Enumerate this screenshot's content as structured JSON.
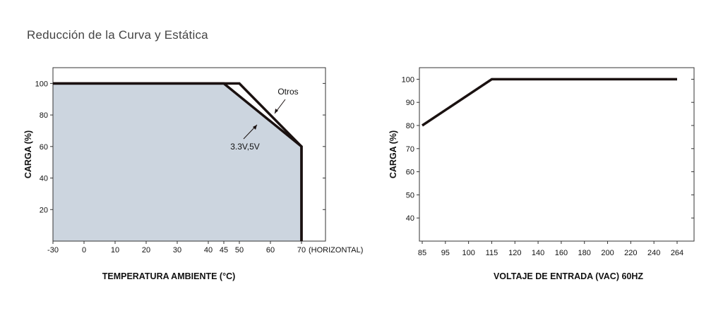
{
  "page": {
    "title": "Reducción de la Curva y Estática"
  },
  "chart_data": [
    {
      "type": "line",
      "xlabel": "TEMPERATURA AMBIENTE (°C)",
      "ylabel": "CARGA (%)",
      "x_ticks": [
        -30,
        0,
        10,
        20,
        30,
        40,
        45,
        50,
        60,
        70
      ],
      "x_tick_labels": [
        "-30",
        "0",
        "10",
        "20",
        "30",
        "40",
        "45",
        "50",
        "60",
        "70"
      ],
      "x_suffix": "(HORIZONTAL)",
      "y_ticks": [
        20,
        40,
        60,
        80,
        100
      ],
      "y_tick_labels": [
        "20",
        "40",
        "60",
        "80",
        "100"
      ],
      "ylim": [
        0,
        110
      ],
      "series": [
        {
          "name": "Otros",
          "points": [
            [
              -30,
              100
            ],
            [
              50,
              100
            ],
            [
              70,
              60
            ],
            [
              70,
              0
            ]
          ]
        },
        {
          "name": "3.3V,5V",
          "points": [
            [
              -30,
              100
            ],
            [
              45,
              100
            ],
            [
              70,
              60
            ],
            [
              70,
              0
            ]
          ]
        }
      ],
      "fill_color": "#ccd5df",
      "line_color": "#1a1110",
      "grid": false
    },
    {
      "type": "line",
      "xlabel": "VOLTAJE DE ENTRADA (VAC) 60HZ",
      "ylabel": "CARGA (%)",
      "x_tick_labels": [
        "85",
        "95",
        "100",
        "115",
        "120",
        "140",
        "160",
        "180",
        "200",
        "220",
        "240",
        "264"
      ],
      "y_ticks": [
        40,
        50,
        60,
        70,
        80,
        90,
        100
      ],
      "y_tick_labels": [
        "40",
        "50",
        "60",
        "70",
        "80",
        "90",
        "100"
      ],
      "ylim": [
        30,
        105
      ],
      "series": [
        {
          "points": [
            [
              "85",
              80
            ],
            [
              "115",
              100
            ],
            [
              "264",
              100
            ]
          ]
        }
      ],
      "line_color": "#1a1110",
      "grid": false
    }
  ]
}
